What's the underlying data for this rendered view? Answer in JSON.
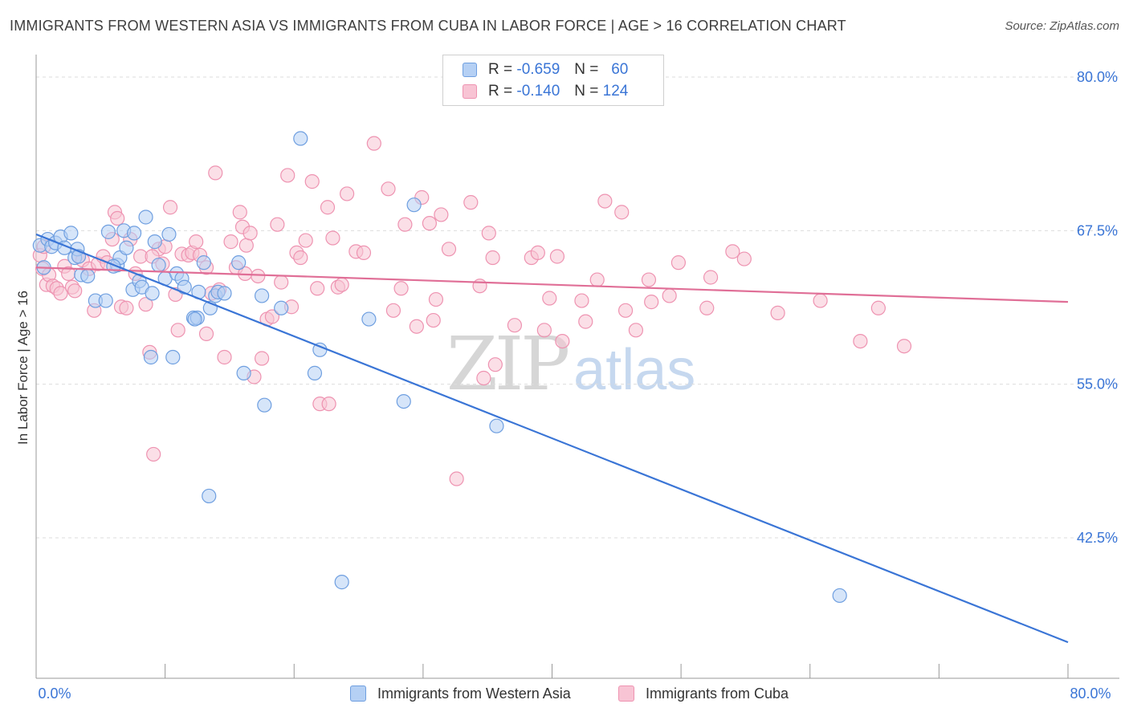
{
  "header": {
    "title": "IMMIGRANTS FROM WESTERN ASIA VS IMMIGRANTS FROM CUBA IN LABOR FORCE | AGE > 16 CORRELATION CHART",
    "source": "Source: ZipAtlas.com"
  },
  "legend": {
    "r_label": "R =",
    "n_label": "N =",
    "rows": [
      {
        "r": "-0.659",
        "n": "60"
      },
      {
        "r": "-0.140",
        "n": "124"
      }
    ]
  },
  "watermark": {
    "zip": "ZIP",
    "atlas": "atlas"
  },
  "colors": {
    "blue": "#3a75d6",
    "blue_fill": "#b5d0f4",
    "blue_stroke": "#6f9fe0",
    "pink": "#e06f97",
    "pink_fill": "#f8c4d4",
    "pink_stroke": "#ee93b1",
    "grid": "#dddddd",
    "axis": "#999999"
  },
  "chart_data": {
    "type": "scatter",
    "title": "IMMIGRANTS FROM WESTERN ASIA VS IMMIGRANTS FROM CUBA IN LABOR FORCE | AGE > 16 CORRELATION CHART",
    "xlabel": "",
    "ylabel": "In Labor Force | Age > 16",
    "xlim": [
      0,
      80
    ],
    "ylim": [
      33,
      82
    ],
    "x_tick_labels": [
      "0.0%",
      "80.0%"
    ],
    "y_ticks": [
      42.5,
      55.0,
      67.5,
      80.0
    ],
    "y_tick_labels": [
      "42.5%",
      "55.0%",
      "67.5%",
      "80.0%"
    ],
    "grid": true,
    "legend_position": "top-center",
    "series": [
      {
        "name": "Immigrants from Western Asia",
        "color": "#3a75d6",
        "r": -0.659,
        "n": 60,
        "trend": {
          "x": [
            0,
            80
          ],
          "y": [
            67.2,
            34.0
          ]
        },
        "points": [
          [
            0.3,
            66.3
          ],
          [
            0.6,
            64.5
          ],
          [
            0.9,
            66.8
          ],
          [
            1.2,
            66.2
          ],
          [
            1.5,
            66.5
          ],
          [
            1.9,
            67.0
          ],
          [
            2.2,
            66.1
          ],
          [
            2.7,
            67.3
          ],
          [
            3.0,
            65.3
          ],
          [
            3.2,
            66.0
          ],
          [
            3.5,
            63.9
          ],
          [
            4.0,
            63.8
          ],
          [
            4.6,
            61.8
          ],
          [
            5.4,
            61.8
          ],
          [
            5.6,
            67.4
          ],
          [
            6.3,
            64.7
          ],
          [
            6.5,
            65.3
          ],
          [
            6.8,
            67.5
          ],
          [
            7.0,
            66.1
          ],
          [
            7.5,
            62.7
          ],
          [
            7.6,
            67.3
          ],
          [
            8.0,
            63.4
          ],
          [
            8.2,
            62.9
          ],
          [
            8.5,
            68.6
          ],
          [
            8.9,
            57.2
          ],
          [
            9.2,
            66.6
          ],
          [
            9.5,
            64.7
          ],
          [
            10.0,
            63.6
          ],
          [
            10.3,
            67.2
          ],
          [
            10.6,
            57.2
          ],
          [
            10.9,
            64.0
          ],
          [
            11.3,
            63.6
          ],
          [
            11.5,
            62.9
          ],
          [
            12.2,
            60.4
          ],
          [
            12.5,
            60.4
          ],
          [
            12.6,
            62.5
          ],
          [
            13.0,
            64.9
          ],
          [
            13.4,
            45.9
          ],
          [
            13.5,
            61.2
          ],
          [
            13.9,
            62.2
          ],
          [
            14.1,
            62.5
          ],
          [
            14.6,
            62.4
          ],
          [
            15.7,
            64.9
          ],
          [
            16.1,
            55.9
          ],
          [
            17.5,
            62.2
          ],
          [
            17.7,
            53.3
          ],
          [
            19.0,
            61.2
          ],
          [
            20.5,
            75.0
          ],
          [
            21.6,
            55.9
          ],
          [
            22.0,
            57.8
          ],
          [
            23.7,
            38.9
          ],
          [
            25.8,
            60.3
          ],
          [
            28.5,
            53.6
          ],
          [
            29.3,
            69.6
          ],
          [
            35.7,
            51.6
          ],
          [
            62.3,
            37.8
          ],
          [
            9.0,
            62.4
          ],
          [
            12.3,
            60.3
          ],
          [
            3.3,
            65.4
          ],
          [
            6.0,
            64.6
          ]
        ]
      },
      {
        "name": "Immigrants from Cuba",
        "color": "#e06f97",
        "r": -0.14,
        "n": 124,
        "trend": {
          "x": [
            0,
            80
          ],
          "y": [
            64.5,
            61.7
          ]
        },
        "points": [
          [
            0.3,
            65.5
          ],
          [
            0.5,
            64.4
          ],
          [
            0.8,
            63.1
          ],
          [
            1.0,
            63.9
          ],
          [
            1.3,
            63.0
          ],
          [
            1.6,
            62.8
          ],
          [
            1.9,
            62.4
          ],
          [
            2.2,
            64.6
          ],
          [
            2.5,
            64.0
          ],
          [
            2.8,
            62.9
          ],
          [
            3.0,
            62.6
          ],
          [
            3.3,
            65.4
          ],
          [
            3.6,
            65.1
          ],
          [
            4.1,
            64.4
          ],
          [
            4.5,
            61.0
          ],
          [
            4.8,
            64.8
          ],
          [
            5.2,
            65.4
          ],
          [
            5.5,
            64.9
          ],
          [
            5.9,
            66.8
          ],
          [
            6.1,
            69.0
          ],
          [
            6.3,
            68.5
          ],
          [
            6.6,
            61.3
          ],
          [
            7.0,
            61.2
          ],
          [
            7.3,
            66.8
          ],
          [
            7.7,
            64.0
          ],
          [
            8.1,
            65.4
          ],
          [
            8.5,
            61.5
          ],
          [
            8.8,
            57.6
          ],
          [
            9.1,
            49.3
          ],
          [
            9.5,
            66.0
          ],
          [
            9.8,
            64.8
          ],
          [
            10.0,
            66.2
          ],
          [
            10.4,
            69.4
          ],
          [
            10.8,
            62.3
          ],
          [
            11.0,
            59.4
          ],
          [
            11.3,
            65.6
          ],
          [
            11.8,
            65.5
          ],
          [
            12.1,
            65.7
          ],
          [
            12.4,
            66.6
          ],
          [
            12.7,
            65.5
          ],
          [
            13.2,
            59.1
          ],
          [
            13.6,
            62.4
          ],
          [
            13.9,
            72.2
          ],
          [
            14.2,
            62.7
          ],
          [
            14.6,
            57.2
          ],
          [
            15.1,
            66.6
          ],
          [
            15.5,
            64.5
          ],
          [
            15.8,
            69.0
          ],
          [
            16.0,
            67.8
          ],
          [
            16.3,
            66.3
          ],
          [
            16.6,
            67.3
          ],
          [
            16.9,
            55.6
          ],
          [
            17.2,
            63.8
          ],
          [
            17.5,
            57.1
          ],
          [
            17.9,
            60.3
          ],
          [
            18.3,
            60.5
          ],
          [
            18.7,
            68.0
          ],
          [
            19.0,
            63.3
          ],
          [
            19.5,
            72.0
          ],
          [
            19.8,
            61.3
          ],
          [
            20.2,
            65.7
          ],
          [
            20.5,
            65.3
          ],
          [
            20.9,
            66.7
          ],
          [
            21.4,
            71.5
          ],
          [
            21.8,
            62.8
          ],
          [
            22.0,
            53.4
          ],
          [
            22.6,
            69.4
          ],
          [
            23.0,
            66.9
          ],
          [
            23.4,
            62.9
          ],
          [
            23.7,
            63.1
          ],
          [
            24.1,
            70.5
          ],
          [
            24.8,
            65.8
          ],
          [
            25.4,
            65.7
          ],
          [
            26.2,
            74.6
          ],
          [
            27.3,
            70.9
          ],
          [
            27.7,
            61.0
          ],
          [
            28.3,
            62.8
          ],
          [
            28.6,
            68.0
          ],
          [
            29.5,
            59.7
          ],
          [
            29.9,
            70.2
          ],
          [
            30.5,
            68.1
          ],
          [
            30.8,
            60.2
          ],
          [
            31.0,
            61.9
          ],
          [
            31.4,
            68.8
          ],
          [
            32.0,
            66.0
          ],
          [
            32.6,
            47.3
          ],
          [
            33.7,
            69.8
          ],
          [
            34.4,
            63.0
          ],
          [
            34.7,
            55.5
          ],
          [
            35.1,
            67.3
          ],
          [
            35.4,
            65.3
          ],
          [
            35.6,
            56.6
          ],
          [
            37.1,
            59.8
          ],
          [
            38.4,
            65.3
          ],
          [
            38.9,
            65.7
          ],
          [
            39.4,
            59.4
          ],
          [
            39.8,
            62.0
          ],
          [
            40.4,
            65.4
          ],
          [
            40.8,
            58.5
          ],
          [
            42.3,
            61.8
          ],
          [
            42.6,
            60.1
          ],
          [
            43.5,
            63.5
          ],
          [
            44.1,
            69.9
          ],
          [
            45.4,
            69.0
          ],
          [
            45.7,
            61.0
          ],
          [
            46.5,
            59.4
          ],
          [
            47.5,
            63.5
          ],
          [
            47.7,
            61.7
          ],
          [
            49.1,
            62.2
          ],
          [
            49.8,
            64.9
          ],
          [
            52.0,
            61.2
          ],
          [
            52.3,
            63.7
          ],
          [
            54.0,
            65.8
          ],
          [
            54.9,
            65.2
          ],
          [
            57.5,
            60.8
          ],
          [
            60.8,
            61.8
          ],
          [
            63.9,
            58.5
          ],
          [
            65.3,
            61.2
          ],
          [
            67.3,
            58.1
          ],
          [
            13.2,
            64.5
          ],
          [
            16.2,
            64.0
          ],
          [
            22.7,
            53.4
          ],
          [
            9.0,
            65.4
          ],
          [
            0.6,
            66.2
          ]
        ]
      }
    ]
  }
}
